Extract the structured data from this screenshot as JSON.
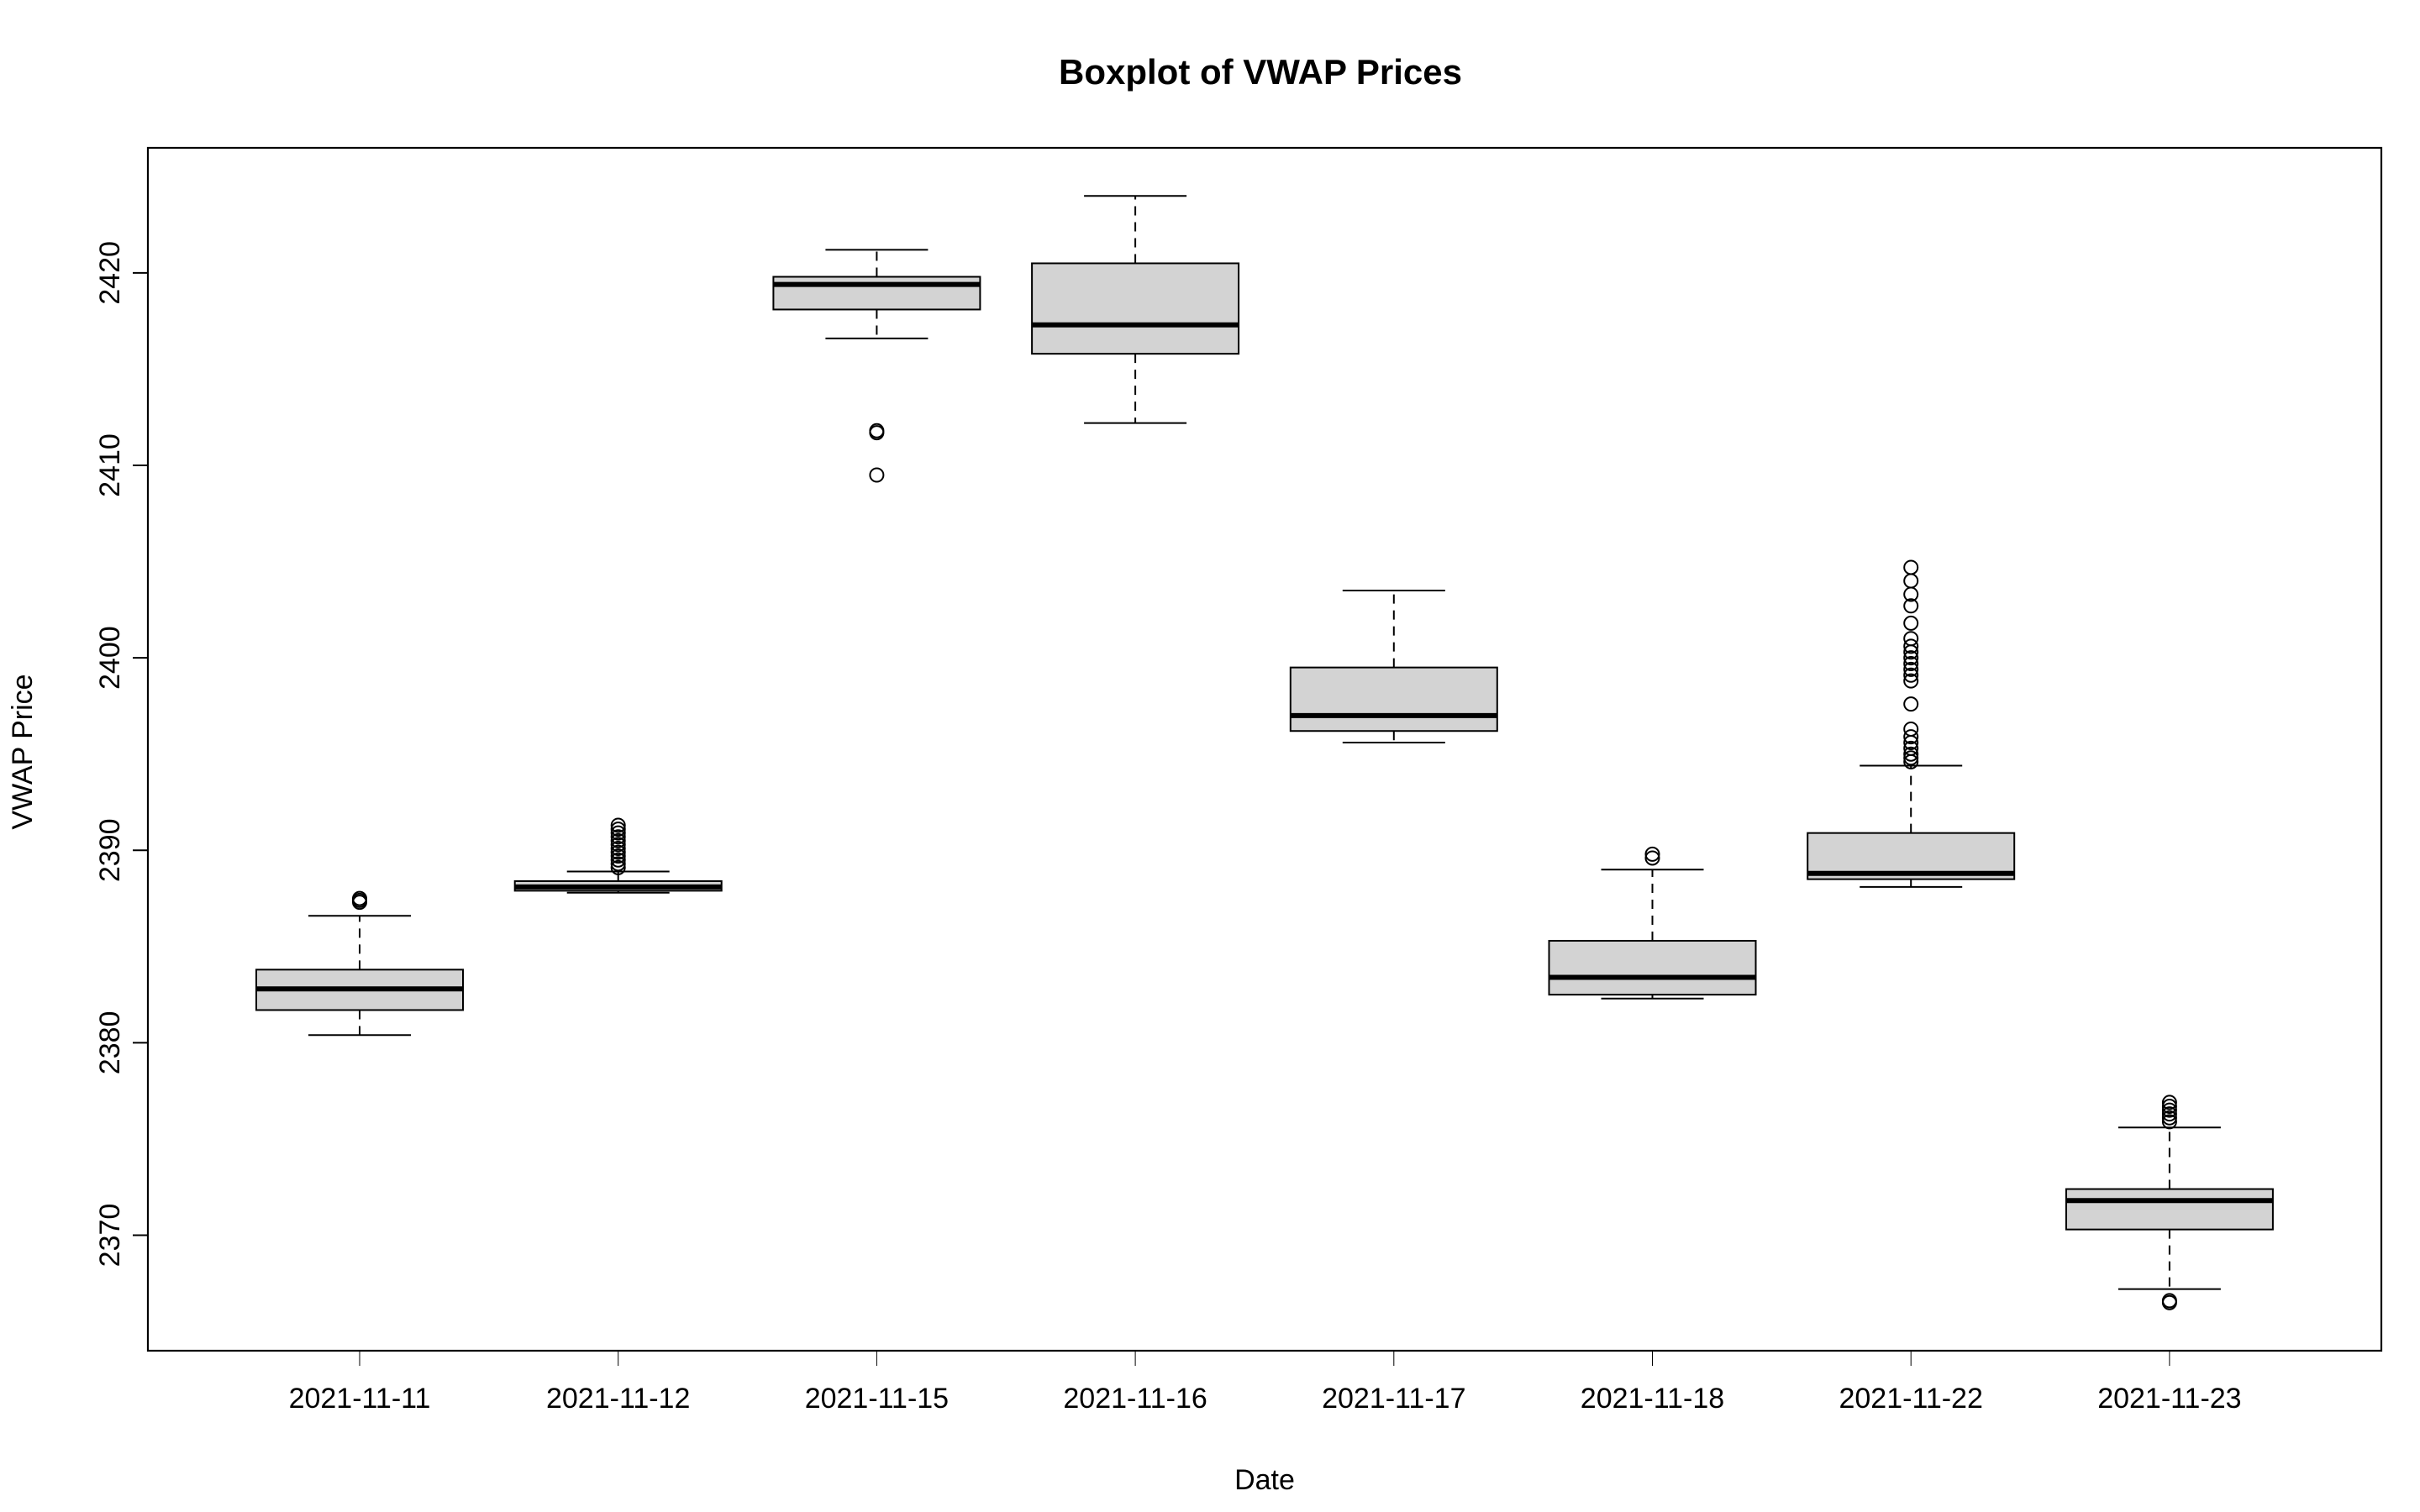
{
  "chart_data": {
    "type": "boxplot",
    "title": "Boxplot of VWAP Prices",
    "xlabel": "Date",
    "ylabel": "VWAP Price",
    "ylim": [
      2364,
      2426.5
    ],
    "yticks": [
      2370,
      2380,
      2390,
      2400,
      2410,
      2420
    ],
    "grid": false,
    "box_color": "#d3d3d3",
    "categories": [
      "2021-11-11",
      "2021-11-12",
      "2021-11-15",
      "2021-11-16",
      "2021-11-17",
      "2021-11-18",
      "2021-11-22",
      "2021-11-23"
    ],
    "boxes": [
      {
        "whisker_low": 2380.4,
        "q1": 2381.7,
        "median": 2382.8,
        "q3": 2383.8,
        "whisker_high": 2386.6,
        "outliers": [
          2387.3,
          2387.4,
          2387.5
        ]
      },
      {
        "whisker_low": 2387.8,
        "q1": 2387.9,
        "median": 2388.1,
        "q3": 2388.4,
        "whisker_high": 2388.9,
        "outliers": [
          2389.1,
          2389.3,
          2389.5,
          2389.7,
          2389.9,
          2390.1,
          2390.3,
          2390.5,
          2390.7,
          2390.9,
          2391.1,
          2391.3
        ]
      },
      {
        "whisker_low": 2416.6,
        "q1": 2418.1,
        "median": 2419.4,
        "q3": 2419.8,
        "whisker_high": 2421.2,
        "outliers": [
          2411.7,
          2411.8,
          2409.5
        ]
      },
      {
        "whisker_low": 2412.2,
        "q1": 2415.8,
        "median": 2417.3,
        "q3": 2420.5,
        "whisker_high": 2424.0,
        "outliers": []
      },
      {
        "whisker_low": 2395.6,
        "q1": 2396.2,
        "median": 2397.0,
        "q3": 2399.5,
        "whisker_high": 2403.5,
        "outliers": []
      },
      {
        "whisker_low": 2382.3,
        "q1": 2382.5,
        "median": 2383.4,
        "q3": 2385.3,
        "whisker_high": 2389.0,
        "outliers": [
          2389.6,
          2389.8
        ]
      },
      {
        "whisker_low": 2388.1,
        "q1": 2388.5,
        "median": 2388.8,
        "q3": 2390.9,
        "whisker_high": 2394.4,
        "outliers": [
          2394.6,
          2394.8,
          2395.0,
          2395.3,
          2395.6,
          2395.9,
          2396.3,
          2397.6,
          2398.8,
          2399.1,
          2399.4,
          2399.7,
          2400.0,
          2400.3,
          2400.6,
          2401.0,
          2401.8,
          2402.7,
          2403.3,
          2404.0,
          2404.7
        ]
      },
      {
        "whisker_low": 2367.2,
        "q1": 2370.3,
        "median": 2371.8,
        "q3": 2372.4,
        "whisker_high": 2375.6,
        "outliers": [
          2375.9,
          2376.1,
          2376.3,
          2376.5,
          2376.7,
          2376.9,
          2366.5,
          2366.6
        ]
      }
    ]
  }
}
